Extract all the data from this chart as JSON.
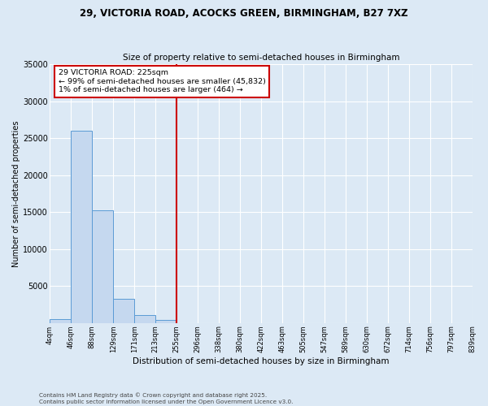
{
  "title1": "29, VICTORIA ROAD, ACOCKS GREEN, BIRMINGHAM, B27 7XZ",
  "title2": "Size of property relative to semi-detached houses in Birmingham",
  "xlabel": "Distribution of semi-detached houses by size in Birmingham",
  "ylabel": "Number of semi-detached properties",
  "bin_labels": [
    "4sqm",
    "46sqm",
    "88sqm",
    "129sqm",
    "171sqm",
    "213sqm",
    "255sqm",
    "296sqm",
    "338sqm",
    "380sqm",
    "422sqm",
    "463sqm",
    "505sqm",
    "547sqm",
    "589sqm",
    "630sqm",
    "672sqm",
    "714sqm",
    "756sqm",
    "797sqm",
    "839sqm"
  ],
  "values": [
    500,
    26000,
    15200,
    3300,
    1100,
    400,
    0,
    0,
    0,
    0,
    0,
    0,
    0,
    0,
    0,
    0,
    0,
    0,
    0,
    0
  ],
  "bar_color": "#c5d8ef",
  "bar_edge_color": "#5b9bd5",
  "background_color": "#dce9f5",
  "plot_bg_color": "#dce9f5",
  "grid_color": "#ffffff",
  "red_line_bin": 6,
  "annotation_text_line1": "29 VICTORIA ROAD: 225sqm",
  "annotation_text_line2": "← 99% of semi-detached houses are smaller (45,832)",
  "annotation_text_line3": "1% of semi-detached houses are larger (464) →",
  "annotation_box_color": "#ffffff",
  "annotation_box_edge_color": "#cc0000",
  "footer_text": "Contains HM Land Registry data © Crown copyright and database right 2025.\nContains public sector information licensed under the Open Government Licence v3.0.",
  "ylim": [
    0,
    35000
  ],
  "yticks": [
    0,
    5000,
    10000,
    15000,
    20000,
    25000,
    30000,
    35000
  ]
}
